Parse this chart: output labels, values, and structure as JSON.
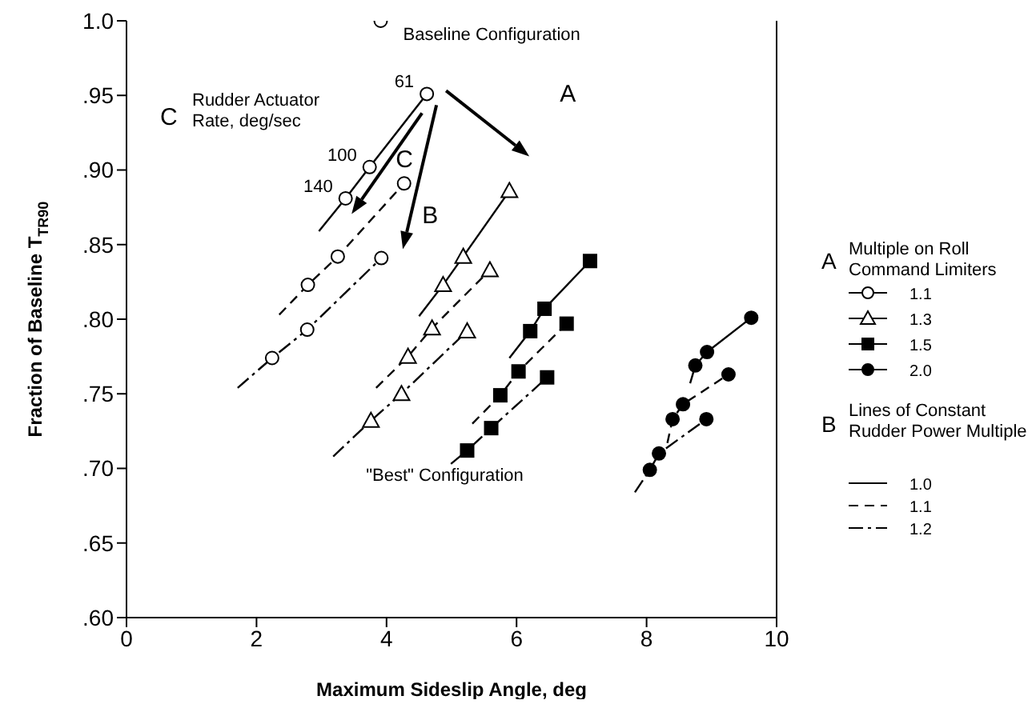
{
  "chart_data": {
    "type": "line",
    "xlabel": "Maximum Sideslip Angle, deg",
    "ylabel": "Fraction of Baseline T$_{TR90}$",
    "xlim": [
      0,
      10
    ],
    "xticks": [
      0,
      2,
      4,
      6,
      8,
      10
    ],
    "ylim": [
      0.6,
      1.0
    ],
    "yticks": [
      {
        "value": 0.6,
        "label": ".60"
      },
      {
        "value": 0.65,
        "label": ".65"
      },
      {
        "value": 0.7,
        "label": ".70"
      },
      {
        "value": 0.75,
        "label": ".75"
      },
      {
        "value": 0.8,
        "label": ".80"
      },
      {
        "value": 0.85,
        "label": ".85"
      },
      {
        "value": 0.9,
        "label": ".90"
      },
      {
        "value": 0.95,
        "label": ".95"
      },
      {
        "value": 1.0,
        "label": "1.0"
      }
    ],
    "grid": false,
    "legend": "right",
    "series": [
      {
        "type": "scatter",
        "name": "1.1",
        "marker": "circle",
        "color": "#ffffff",
        "x": [
          3.37,
          3.74,
          4.62,
          2.79,
          3.25,
          4.27,
          2.24,
          2.78,
          3.92
        ],
        "values": [
          0.881,
          0.902,
          0.951,
          0.823,
          0.842,
          0.891,
          0.774,
          0.793,
          0.841
        ]
      },
      {
        "type": "scatter",
        "name": "1.3",
        "marker": "triangle",
        "color": "#ffffff",
        "x": [
          4.87,
          5.18,
          5.89,
          4.33,
          4.7,
          5.59,
          3.76,
          4.23,
          5.24
        ],
        "values": [
          0.823,
          0.842,
          0.886,
          0.775,
          0.794,
          0.833,
          0.732,
          0.75,
          0.792
        ]
      },
      {
        "type": "scatter",
        "name": "1.5",
        "marker": "square",
        "color": "#000000",
        "x": [
          6.21,
          6.43,
          7.13,
          5.75,
          6.03,
          6.77,
          5.24,
          5.61,
          6.47
        ],
        "values": [
          0.792,
          0.807,
          0.839,
          0.749,
          0.765,
          0.797,
          0.712,
          0.727,
          0.761
        ]
      },
      {
        "type": "scatter",
        "name": "2.0",
        "marker": "circle",
        "color": "#000000",
        "x": [
          8.75,
          8.93,
          9.61,
          8.4,
          8.56,
          9.26,
          8.05,
          8.19,
          8.92
        ],
        "values": [
          0.769,
          0.778,
          0.801,
          0.733,
          0.743,
          0.763,
          0.699,
          0.71,
          0.733
        ]
      },
      {
        "type": "scatter",
        "marker": "circle",
        "color": "#ffffff",
        "x": [
          3.91
        ],
        "values": [
          1.0
        ]
      },
      {
        "type": "line",
        "name": "1.0",
        "line_style": "solid",
        "marker": "none",
        "color": "#000000",
        "x": [
          2.96,
          3.37,
          3.74,
          4.62
        ],
        "values": [
          0.859,
          0.881,
          0.902,
          0.951
        ]
      },
      {
        "type": "line",
        "name": "1.1",
        "line_style": "dashed",
        "marker": "none",
        "color": "#000000",
        "x": [
          2.35,
          2.79,
          3.25,
          4.27
        ],
        "values": [
          0.803,
          0.823,
          0.842,
          0.891
        ]
      },
      {
        "type": "line",
        "name": "1.2",
        "line_style": "dashdot",
        "marker": "none",
        "color": "#000000",
        "x": [
          1.71,
          2.24,
          2.78,
          3.92
        ],
        "values": [
          0.754,
          0.774,
          0.793,
          0.841
        ]
      },
      {
        "type": "line",
        "line_style": "solid",
        "marker": "none",
        "color": "#000000",
        "x": [
          4.5,
          4.87,
          5.18,
          5.89
        ],
        "values": [
          0.802,
          0.823,
          0.842,
          0.886
        ]
      },
      {
        "type": "line",
        "line_style": "dashed",
        "marker": "none",
        "color": "#000000",
        "x": [
          3.84,
          4.33,
          4.7,
          5.59
        ],
        "values": [
          0.754,
          0.775,
          0.794,
          0.833
        ]
      },
      {
        "type": "line",
        "line_style": "dashdot",
        "marker": "none",
        "color": "#000000",
        "x": [
          3.18,
          3.76,
          4.23,
          5.24
        ],
        "values": [
          0.708,
          0.732,
          0.75,
          0.792
        ]
      },
      {
        "type": "line",
        "line_style": "solid",
        "marker": "none",
        "color": "#000000",
        "x": [
          5.89,
          6.21,
          6.43,
          7.13
        ],
        "values": [
          0.774,
          0.792,
          0.807,
          0.839
        ]
      },
      {
        "type": "line",
        "line_style": "dashed",
        "marker": "none",
        "color": "#000000",
        "x": [
          5.32,
          5.75,
          6.03,
          6.77
        ],
        "values": [
          0.73,
          0.749,
          0.765,
          0.797
        ]
      },
      {
        "type": "line",
        "line_style": "dashdot",
        "marker": "none",
        "color": "#000000",
        "x": [
          4.99,
          5.24,
          5.61,
          6.47
        ],
        "values": [
          0.703,
          0.712,
          0.727,
          0.761
        ]
      },
      {
        "type": "line",
        "line_style": "solid",
        "marker": "none",
        "color": "#000000",
        "x": [
          8.67,
          8.75,
          8.93,
          9.61
        ],
        "values": [
          0.757,
          0.769,
          0.778,
          0.801
        ]
      },
      {
        "type": "line",
        "line_style": "dashed",
        "marker": "none",
        "color": "#000000",
        "x": [
          8.32,
          8.4,
          8.56,
          9.26
        ],
        "values": [
          0.717,
          0.733,
          0.743,
          0.763
        ]
      },
      {
        "type": "line",
        "line_style": "dashdot",
        "marker": "none",
        "color": "#000000",
        "x": [
          7.82,
          8.05,
          8.19,
          8.92
        ],
        "values": [
          0.684,
          0.699,
          0.71,
          0.733
        ]
      }
    ],
    "annotations": [
      {
        "text": "Baseline Configuration",
        "x": 3.91,
        "y": 1.0
      },
      {
        "text": "61",
        "x": 4.62,
        "y": 0.951
      },
      {
        "text": "100",
        "x": 3.74,
        "y": 0.902
      },
      {
        "text": "140",
        "x": 3.37,
        "y": 0.881
      },
      {
        "text": "\"Best\" Configuration",
        "x": 5.24,
        "y": 0.712
      },
      "A",
      "B",
      "C",
      "C",
      "Rudder Actuator Rate, deg/sec",
      "A",
      "Multiple on Roll Command Limiters",
      "B",
      "Lines of Constant Rudder Power Multiple"
    ]
  }
}
